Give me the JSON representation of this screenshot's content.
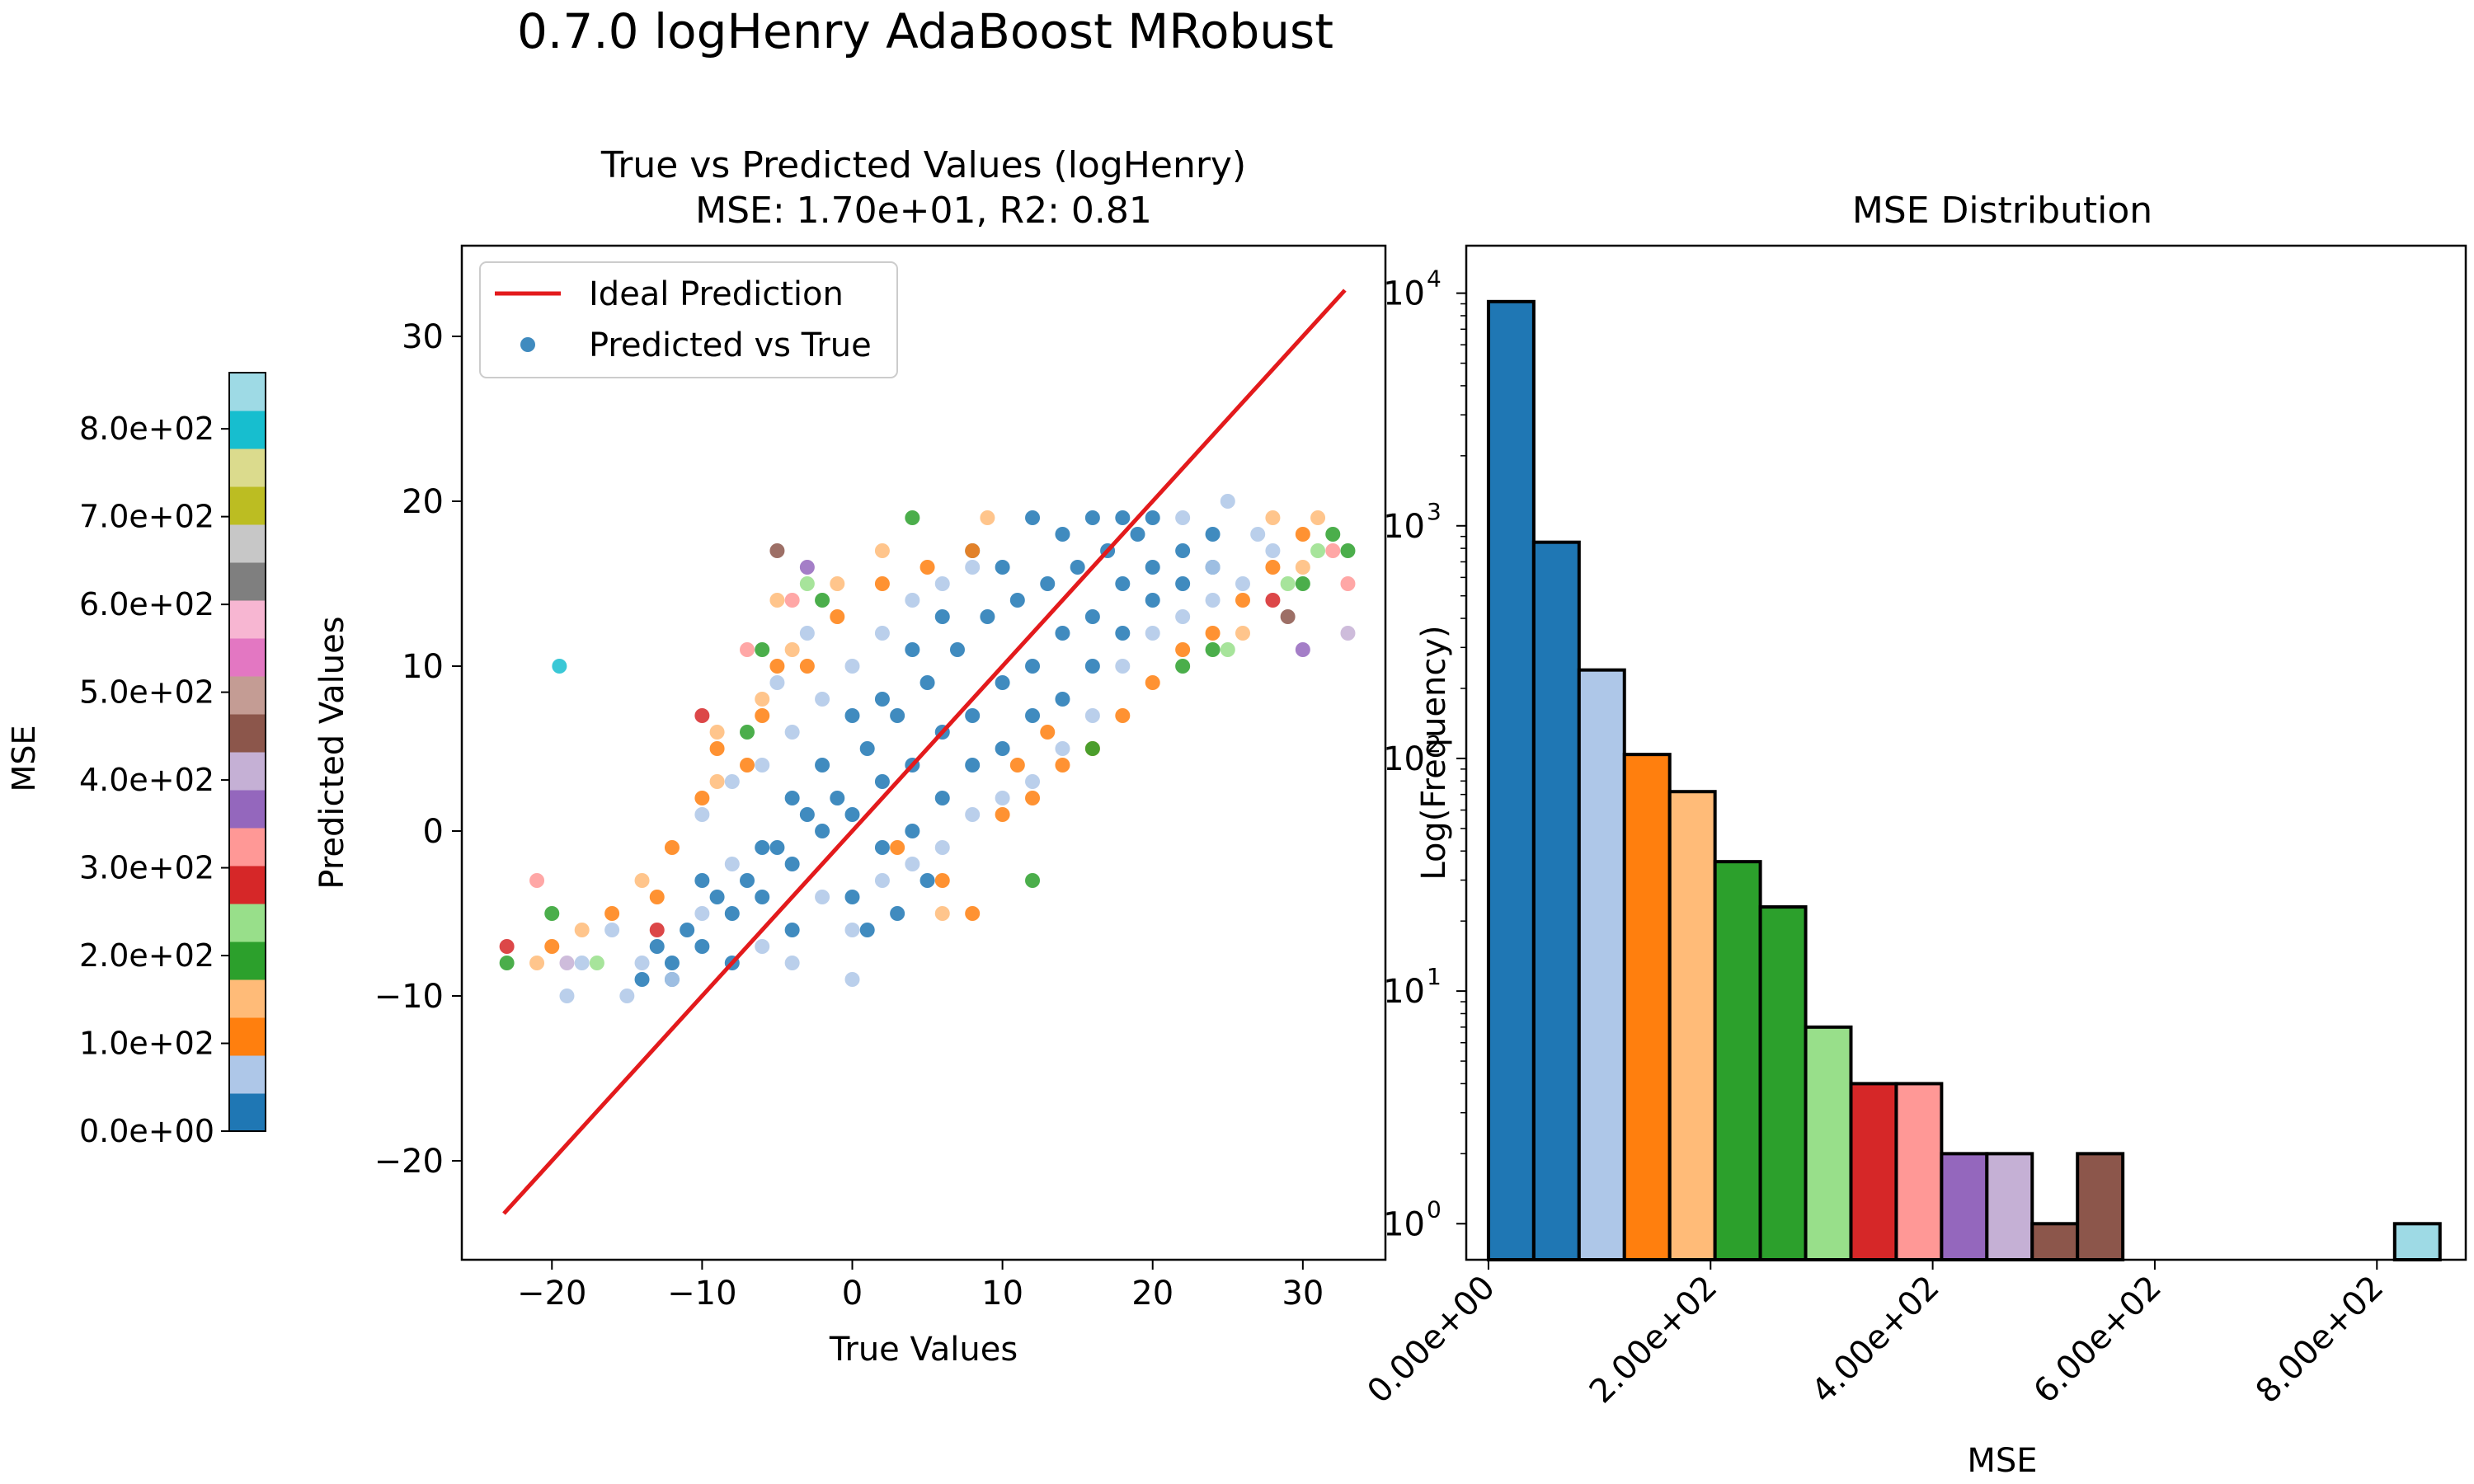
{
  "figure": {
    "title": "0.7.0 logHenry AdaBoost MRobust"
  },
  "palette": [
    "#1f77b4",
    "#aec7e8",
    "#ff7f0e",
    "#ffbb78",
    "#2ca02c",
    "#98df8a",
    "#d62728",
    "#ff9896",
    "#9467bd",
    "#c5b0d5",
    "#8c564b",
    "#c49c94",
    "#e377c2",
    "#f7b6d2",
    "#7f7f7f",
    "#c7c7c7",
    "#bcbd22",
    "#dbdb8d",
    "#17becf",
    "#9edae5"
  ],
  "colorbar": {
    "label": "MSE",
    "range": [
      0,
      864
    ],
    "ticks": [
      0,
      100,
      200,
      300,
      400,
      500,
      600,
      700,
      800
    ],
    "tick_labels": [
      "0.0e+00",
      "1.0e+02",
      "2.0e+02",
      "3.0e+02",
      "4.0e+02",
      "5.0e+02",
      "6.0e+02",
      "7.0e+02",
      "8.0e+02"
    ]
  },
  "chart_data": [
    {
      "type": "scatter",
      "title": "True vs Predicted Values (logHenry)",
      "subtitle": "MSE: 1.70e+01, R2: 0.81",
      "xlabel": "True Values",
      "ylabel": "Predicted Values",
      "xlim": [
        -26,
        35.5
      ],
      "ylim": [
        -26,
        35.5
      ],
      "xticks": [
        -20,
        -10,
        0,
        10,
        20,
        30
      ],
      "yticks": [
        -20,
        -10,
        0,
        10,
        20,
        30
      ],
      "xtick_labels": [
        "−20",
        "−10",
        "0",
        "10",
        "20",
        "30"
      ],
      "ytick_labels": [
        "−20",
        "−10",
        "0",
        "10",
        "20",
        "30"
      ],
      "legend": {
        "position": "top-left",
        "entries": [
          "Ideal Prediction",
          "Predicted vs True"
        ]
      },
      "ideal_line": {
        "x": [
          -23.2,
          32.8
        ],
        "y": [
          -23.2,
          32.8
        ]
      },
      "series": [
        {
          "name": "Predicted vs True",
          "color_index_by_mse": true,
          "points": [
            [
              -14,
              -9,
              0
            ],
            [
              -12,
              -8,
              0
            ],
            [
              -10,
              -7,
              0
            ],
            [
              -8,
              -5,
              0
            ],
            [
              -6,
              -4,
              0
            ],
            [
              -4,
              -2,
              0
            ],
            [
              -2,
              0,
              0
            ],
            [
              0,
              1,
              0
            ],
            [
              2,
              3,
              0
            ],
            [
              4,
              4,
              0
            ],
            [
              6,
              6,
              0
            ],
            [
              8,
              7,
              0
            ],
            [
              10,
              9,
              0
            ],
            [
              12,
              10,
              0
            ],
            [
              14,
              12,
              0
            ],
            [
              16,
              13,
              0
            ],
            [
              18,
              15,
              0
            ],
            [
              20,
              16,
              0
            ],
            [
              22,
              17,
              0
            ],
            [
              24,
              18,
              0
            ],
            [
              -13,
              -7,
              0
            ],
            [
              -11,
              -6,
              0
            ],
            [
              -9,
              -4,
              0
            ],
            [
              -7,
              -3,
              0
            ],
            [
              -5,
              -1,
              0
            ],
            [
              -3,
              1,
              0
            ],
            [
              -1,
              2,
              0
            ],
            [
              1,
              5,
              0
            ],
            [
              3,
              7,
              0
            ],
            [
              5,
              9,
              0
            ],
            [
              7,
              11,
              0
            ],
            [
              9,
              13,
              0
            ],
            [
              11,
              14,
              0
            ],
            [
              13,
              15,
              0
            ],
            [
              15,
              16,
              0
            ],
            [
              17,
              17,
              0
            ],
            [
              19,
              18,
              0
            ],
            [
              -12,
              -9,
              0
            ],
            [
              -8,
              -8,
              0
            ],
            [
              -4,
              -6,
              0
            ],
            [
              0,
              -4,
              0
            ],
            [
              2,
              -1,
              0
            ],
            [
              4,
              0,
              0
            ],
            [
              6,
              2,
              0
            ],
            [
              8,
              4,
              0
            ],
            [
              10,
              5,
              0
            ],
            [
              12,
              7,
              0
            ],
            [
              14,
              8,
              0
            ],
            [
              16,
              10,
              0
            ],
            [
              18,
              12,
              0
            ],
            [
              20,
              14,
              0
            ],
            [
              22,
              15,
              0
            ],
            [
              24,
              16,
              0
            ],
            [
              -6,
              -1,
              0
            ],
            [
              -2,
              4,
              0
            ],
            [
              2,
              8,
              0
            ],
            [
              6,
              13,
              0
            ],
            [
              10,
              16,
              0
            ],
            [
              14,
              18,
              0
            ],
            [
              18,
              19,
              0
            ],
            [
              8,
              17,
              0
            ],
            [
              12,
              19,
              0
            ],
            [
              16,
              19,
              0
            ],
            [
              20,
              19,
              0
            ],
            [
              -10,
              -3,
              0
            ],
            [
              4,
              11,
              0
            ],
            [
              0,
              7,
              0
            ],
            [
              -4,
              2,
              0
            ],
            [
              3,
              -5,
              0
            ],
            [
              5,
              -3,
              0
            ],
            [
              1,
              -6,
              0
            ],
            [
              -14,
              -8,
              1
            ],
            [
              -12,
              -9,
              1
            ],
            [
              -10,
              -5,
              1
            ],
            [
              -8,
              -2,
              1
            ],
            [
              -6,
              -7,
              1
            ],
            [
              -4,
              -8,
              1
            ],
            [
              -2,
              -4,
              1
            ],
            [
              0,
              -6,
              1
            ],
            [
              2,
              -3,
              1
            ],
            [
              4,
              -2,
              1
            ],
            [
              6,
              -1,
              1
            ],
            [
              8,
              1,
              1
            ],
            [
              10,
              2,
              1
            ],
            [
              12,
              3,
              1
            ],
            [
              14,
              5,
              1
            ],
            [
              16,
              7,
              1
            ],
            [
              18,
              10,
              1
            ],
            [
              20,
              12,
              1
            ],
            [
              22,
              13,
              1
            ],
            [
              24,
              14,
              1
            ],
            [
              26,
              15,
              1
            ],
            [
              28,
              17,
              1
            ],
            [
              -10,
              1,
              1
            ],
            [
              -8,
              3,
              1
            ],
            [
              -6,
              4,
              1
            ],
            [
              -4,
              6,
              1
            ],
            [
              -2,
              8,
              1
            ],
            [
              0,
              10,
              1
            ],
            [
              2,
              12,
              1
            ],
            [
              4,
              14,
              1
            ],
            [
              6,
              15,
              1
            ],
            [
              8,
              16,
              1
            ],
            [
              -16,
              -6,
              1
            ],
            [
              -18,
              -8,
              1
            ],
            [
              -15,
              -10,
              1
            ],
            [
              -19,
              -10,
              1
            ],
            [
              0,
              -9,
              1
            ],
            [
              -19.5,
              10,
              18
            ],
            [
              -5,
              9,
              1
            ],
            [
              -3,
              12,
              1
            ],
            [
              25,
              20,
              1
            ],
            [
              27,
              18,
              1
            ],
            [
              24,
              16,
              1
            ],
            [
              22,
              19,
              1
            ],
            [
              -20,
              -7,
              2
            ],
            [
              -16,
              -5,
              2
            ],
            [
              -13,
              -4,
              2
            ],
            [
              -10,
              2,
              2
            ],
            [
              -7,
              4,
              2
            ],
            [
              -6,
              7,
              2
            ],
            [
              -3,
              10,
              2
            ],
            [
              -1,
              13,
              2
            ],
            [
              2,
              15,
              2
            ],
            [
              5,
              16,
              2
            ],
            [
              8,
              17,
              2
            ],
            [
              -5,
              10,
              2
            ],
            [
              -9,
              5,
              2
            ],
            [
              -12,
              -1,
              2
            ],
            [
              3,
              -1,
              2
            ],
            [
              6,
              -3,
              2
            ],
            [
              8,
              -5,
              2
            ],
            [
              10,
              1,
              2
            ],
            [
              12,
              2,
              2
            ],
            [
              14,
              4,
              2
            ],
            [
              16,
              5,
              2
            ],
            [
              18,
              7,
              2
            ],
            [
              20,
              9,
              2
            ],
            [
              22,
              11,
              2
            ],
            [
              24,
              12,
              2
            ],
            [
              26,
              14,
              2
            ],
            [
              28,
              16,
              2
            ],
            [
              30,
              18,
              2
            ],
            [
              11,
              4,
              2
            ],
            [
              13,
              6,
              2
            ],
            [
              -21,
              -8,
              3
            ],
            [
              -18,
              -6,
              3
            ],
            [
              -14,
              -3,
              3
            ],
            [
              -9,
              3,
              3
            ],
            [
              -6,
              8,
              3
            ],
            [
              -4,
              11,
              3
            ],
            [
              -1,
              15,
              3
            ],
            [
              2,
              17,
              3
            ],
            [
              9,
              19,
              3
            ],
            [
              28,
              19,
              3
            ],
            [
              31,
              19,
              3
            ],
            [
              30,
              16,
              3
            ],
            [
              26,
              12,
              3
            ],
            [
              6,
              -5,
              3
            ],
            [
              -9,
              6,
              3
            ],
            [
              -5,
              14,
              3
            ],
            [
              -23,
              -8,
              4
            ],
            [
              -20,
              -5,
              4
            ],
            [
              -6,
              11,
              4
            ],
            [
              -2,
              14,
              4
            ],
            [
              4,
              19,
              4
            ],
            [
              16,
              5,
              4
            ],
            [
              24,
              11,
              4
            ],
            [
              22,
              10,
              4
            ],
            [
              30,
              15,
              4
            ],
            [
              32,
              18,
              4
            ],
            [
              33,
              17,
              4
            ],
            [
              -7,
              6,
              4
            ],
            [
              12,
              -3,
              4
            ],
            [
              -17,
              -8,
              5
            ],
            [
              31,
              17,
              5
            ],
            [
              29,
              15,
              5
            ],
            [
              25,
              11,
              5
            ],
            [
              -3,
              15,
              5
            ],
            [
              -23,
              -7,
              6
            ],
            [
              -10,
              7,
              6
            ],
            [
              28,
              14,
              6
            ],
            [
              -13,
              -6,
              6
            ],
            [
              -21,
              -3,
              7
            ],
            [
              -7,
              11,
              7
            ],
            [
              33,
              15,
              7
            ],
            [
              32,
              17,
              7
            ],
            [
              -4,
              14,
              7
            ],
            [
              -3,
              16,
              8
            ],
            [
              30,
              11,
              8
            ],
            [
              -19,
              -8,
              9
            ],
            [
              33,
              12,
              9
            ],
            [
              -5,
              17,
              10
            ],
            [
              29,
              13,
              10
            ]
          ]
        }
      ]
    },
    {
      "type": "bar",
      "title": "MSE Distribution",
      "xlabel": "MSE",
      "ylabel": "Log(Frequency)",
      "yscale": "log",
      "xlim": [
        -20,
        880
      ],
      "ylim": [
        0.7,
        16000
      ],
      "xticks": [
        0,
        200,
        400,
        600,
        800
      ],
      "xtick_labels": [
        "0.00e+00",
        "2.00e+02",
        "4.00e+02",
        "6.00e+02",
        "8.00e+02"
      ],
      "yticks": [
        1,
        10,
        100,
        1000,
        10000
      ],
      "ytick_labels": [
        "10",
        "10",
        "10",
        "10",
        "10"
      ],
      "ytick_exponents": [
        "0",
        "1",
        "2",
        "3",
        "4"
      ],
      "bin_width": 40.8,
      "bins": [
        {
          "start": 0.0,
          "count": 9200,
          "color": 0
        },
        {
          "start": 40.8,
          "count": 850,
          "color": 0
        },
        {
          "start": 81.6,
          "count": 240,
          "color": 1
        },
        {
          "start": 122.4,
          "count": 104,
          "color": 2
        },
        {
          "start": 163.2,
          "count": 72,
          "color": 3
        },
        {
          "start": 204.0,
          "count": 36,
          "color": 4
        },
        {
          "start": 244.8,
          "count": 23,
          "color": 4
        },
        {
          "start": 285.6,
          "count": 7,
          "color": 5
        },
        {
          "start": 326.4,
          "count": 4,
          "color": 6
        },
        {
          "start": 367.2,
          "count": 4,
          "color": 7
        },
        {
          "start": 408.0,
          "count": 2,
          "color": 8
        },
        {
          "start": 448.8,
          "count": 2,
          "color": 9
        },
        {
          "start": 489.6,
          "count": 1,
          "color": 10
        },
        {
          "start": 530.4,
          "count": 2,
          "color": 10
        },
        {
          "start": 816.0,
          "count": 1,
          "color": 19
        }
      ]
    }
  ]
}
